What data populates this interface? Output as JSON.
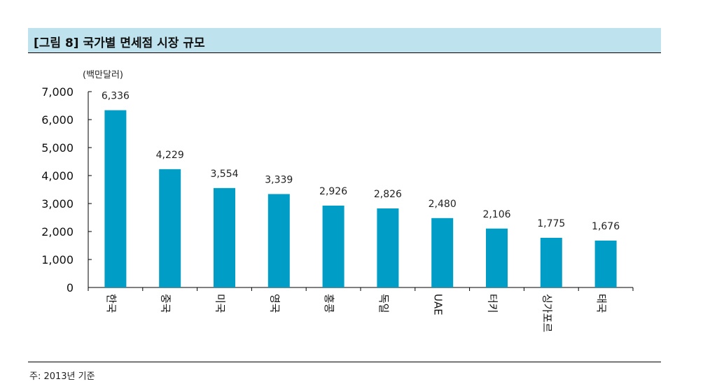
{
  "title": "[그림 8] 국가별 면세점 시장 규모",
  "note": "주: 2013년 기준",
  "chart_data": {
    "type": "bar",
    "unit_label": "(백만달러)",
    "categories": [
      "한국",
      "중국",
      "미국",
      "영국",
      "홍콩",
      "독일",
      "UAE",
      "터키",
      "싱가포르",
      "태국"
    ],
    "values": [
      6336,
      4229,
      3554,
      3339,
      2926,
      2826,
      2480,
      2106,
      1775,
      1676
    ],
    "value_labels": [
      "6,336",
      "4,229",
      "3,554",
      "3,339",
      "2,926",
      "2,826",
      "2,480",
      "2,106",
      "1,775",
      "1,676"
    ],
    "yticks": [
      "7,000",
      "6,000",
      "5,000",
      "4,000",
      "3,000",
      "2,000",
      "1,000",
      "0"
    ],
    "ylim": [
      0,
      7000
    ],
    "grid": false,
    "bar_color": "#009ec6"
  }
}
